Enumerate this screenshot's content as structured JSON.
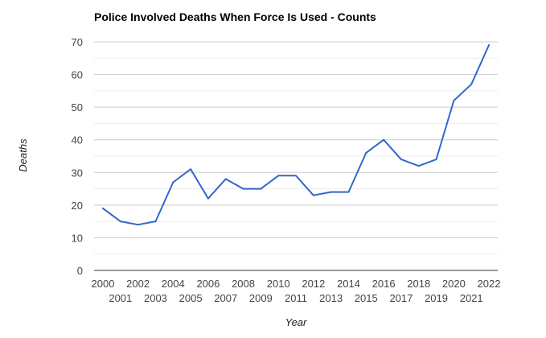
{
  "chart_data": {
    "type": "line",
    "title": "Police Involved Deaths When Force Is Used - Counts",
    "xlabel": "Year",
    "ylabel": "Deaths",
    "x": [
      2000,
      2001,
      2002,
      2003,
      2004,
      2005,
      2006,
      2007,
      2008,
      2009,
      2010,
      2011,
      2012,
      2013,
      2014,
      2015,
      2016,
      2017,
      2018,
      2019,
      2020,
      2021,
      2022
    ],
    "x_tick_labels": [
      "2000",
      "2001",
      "2002",
      "2003",
      "2004",
      "2005",
      "2006",
      "2007",
      "2008",
      "2009",
      "2010",
      "2011",
      "2012",
      "2013",
      "2014",
      "2015",
      "2016",
      "2017",
      "2018",
      "2019",
      "2020",
      "2021",
      "2022"
    ],
    "series": [
      {
        "values": [
          19,
          15,
          14,
          15,
          27,
          31,
          22,
          28,
          25,
          25,
          29,
          29,
          23,
          24,
          24,
          36,
          40,
          34,
          32,
          34,
          52,
          57,
          69
        ],
        "color": "#3366cc"
      }
    ],
    "ylim": [
      0,
      70
    ],
    "y_ticks": [
      0,
      10,
      20,
      30,
      40,
      50,
      60,
      70
    ],
    "y_tick_labels": [
      "0",
      "10",
      "20",
      "30",
      "40",
      "50",
      "60",
      "70"
    ],
    "grid": true,
    "legend": "none",
    "colors": {
      "line": "#3366cc",
      "gridline": "#cccccc",
      "baseline": "#333333"
    }
  }
}
